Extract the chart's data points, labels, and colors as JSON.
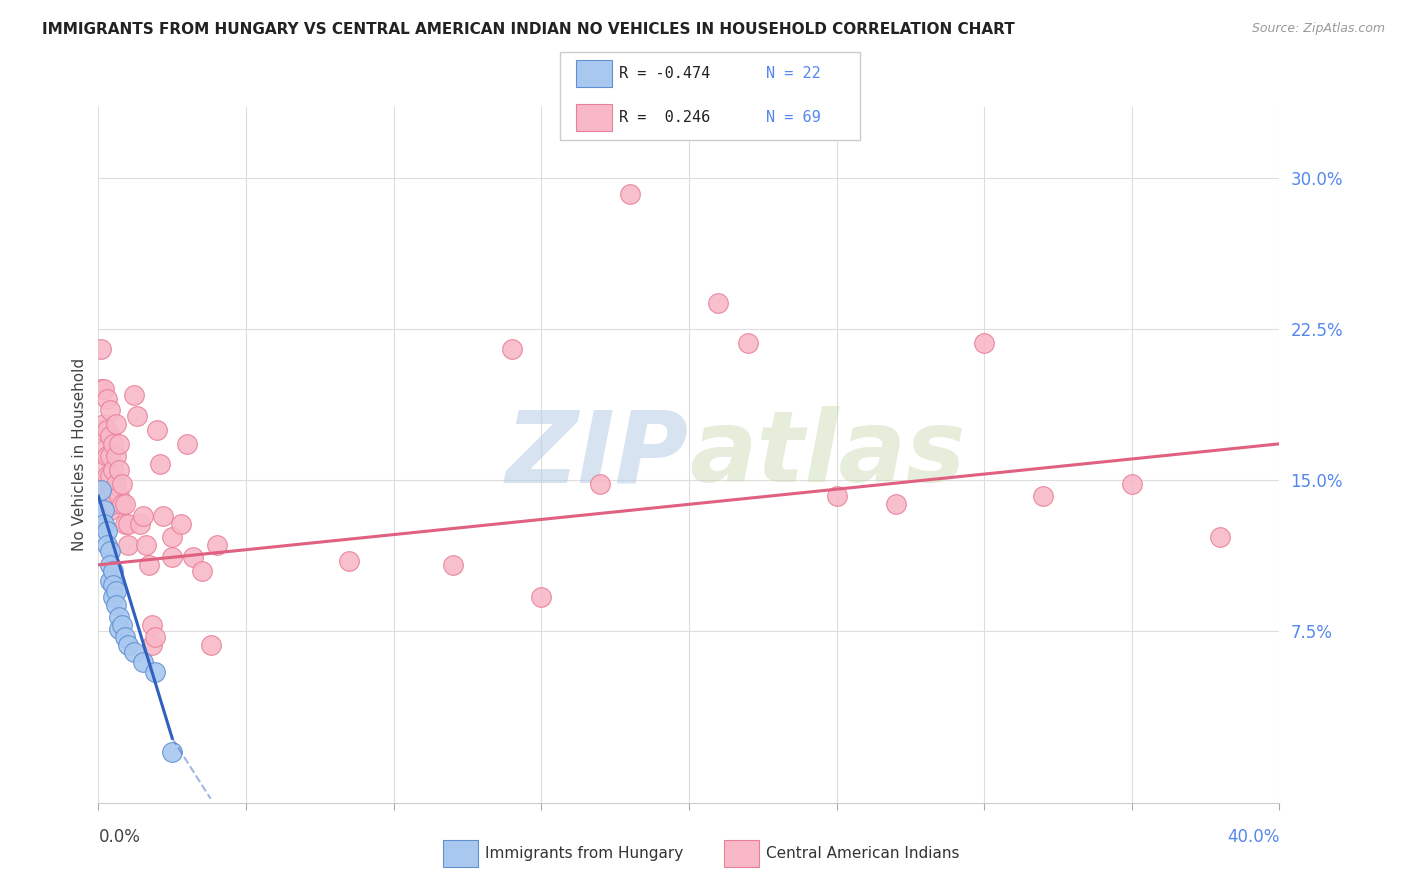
{
  "title": "IMMIGRANTS FROM HUNGARY VS CENTRAL AMERICAN INDIAN NO VEHICLES IN HOUSEHOLD CORRELATION CHART",
  "source": "Source: ZipAtlas.com",
  "ylabel": "No Vehicles in Household",
  "ytick_labels": [
    "7.5%",
    "15.0%",
    "22.5%",
    "30.0%"
  ],
  "ytick_values": [
    0.075,
    0.15,
    0.225,
    0.3
  ],
  "xlim": [
    0.0,
    0.4
  ],
  "ylim": [
    -0.01,
    0.335
  ],
  "legend_blue_r": "R = -0.474",
  "legend_blue_n": "N = 22",
  "legend_pink_r": "R =  0.246",
  "legend_pink_n": "N = 69",
  "blue_label": "Immigrants from Hungary",
  "pink_label": "Central American Indians",
  "watermark_zip": "ZIP",
  "watermark_atlas": "atlas",
  "blue_color": "#a8c8f0",
  "pink_color": "#f8b8c8",
  "blue_edge_color": "#6090d0",
  "pink_edge_color": "#e88098",
  "blue_line_color": "#3060c0",
  "pink_line_color": "#e06080",
  "blue_scatter": [
    [
      0.001,
      0.145
    ],
    [
      0.002,
      0.135
    ],
    [
      0.002,
      0.128
    ],
    [
      0.003,
      0.125
    ],
    [
      0.003,
      0.118
    ],
    [
      0.004,
      0.115
    ],
    [
      0.004,
      0.108
    ],
    [
      0.004,
      0.1
    ],
    [
      0.005,
      0.105
    ],
    [
      0.005,
      0.098
    ],
    [
      0.005,
      0.092
    ],
    [
      0.006,
      0.095
    ],
    [
      0.006,
      0.088
    ],
    [
      0.007,
      0.082
    ],
    [
      0.007,
      0.076
    ],
    [
      0.008,
      0.078
    ],
    [
      0.009,
      0.072
    ],
    [
      0.01,
      0.068
    ],
    [
      0.012,
      0.065
    ],
    [
      0.015,
      0.06
    ],
    [
      0.019,
      0.055
    ],
    [
      0.025,
      0.015
    ]
  ],
  "pink_scatter": [
    [
      0.001,
      0.215
    ],
    [
      0.001,
      0.195
    ],
    [
      0.001,
      0.175
    ],
    [
      0.002,
      0.195
    ],
    [
      0.002,
      0.178
    ],
    [
      0.002,
      0.165
    ],
    [
      0.002,
      0.155
    ],
    [
      0.002,
      0.148
    ],
    [
      0.003,
      0.19
    ],
    [
      0.003,
      0.175
    ],
    [
      0.003,
      0.162
    ],
    [
      0.003,
      0.152
    ],
    [
      0.003,
      0.142
    ],
    [
      0.004,
      0.185
    ],
    [
      0.004,
      0.172
    ],
    [
      0.004,
      0.162
    ],
    [
      0.004,
      0.152
    ],
    [
      0.004,
      0.142
    ],
    [
      0.004,
      0.135
    ],
    [
      0.005,
      0.168
    ],
    [
      0.005,
      0.155
    ],
    [
      0.005,
      0.145
    ],
    [
      0.005,
      0.138
    ],
    [
      0.006,
      0.178
    ],
    [
      0.006,
      0.162
    ],
    [
      0.006,
      0.148
    ],
    [
      0.007,
      0.168
    ],
    [
      0.007,
      0.155
    ],
    [
      0.007,
      0.142
    ],
    [
      0.008,
      0.148
    ],
    [
      0.008,
      0.138
    ],
    [
      0.009,
      0.138
    ],
    [
      0.009,
      0.128
    ],
    [
      0.01,
      0.128
    ],
    [
      0.01,
      0.118
    ],
    [
      0.012,
      0.192
    ],
    [
      0.013,
      0.182
    ],
    [
      0.014,
      0.128
    ],
    [
      0.015,
      0.132
    ],
    [
      0.016,
      0.118
    ],
    [
      0.017,
      0.108
    ],
    [
      0.018,
      0.078
    ],
    [
      0.018,
      0.068
    ],
    [
      0.019,
      0.072
    ],
    [
      0.02,
      0.175
    ],
    [
      0.021,
      0.158
    ],
    [
      0.022,
      0.132
    ],
    [
      0.025,
      0.122
    ],
    [
      0.025,
      0.112
    ],
    [
      0.028,
      0.128
    ],
    [
      0.03,
      0.168
    ],
    [
      0.032,
      0.112
    ],
    [
      0.035,
      0.105
    ],
    [
      0.038,
      0.068
    ],
    [
      0.04,
      0.118
    ],
    [
      0.085,
      0.11
    ],
    [
      0.12,
      0.108
    ],
    [
      0.14,
      0.215
    ],
    [
      0.15,
      0.092
    ],
    [
      0.17,
      0.148
    ],
    [
      0.18,
      0.292
    ],
    [
      0.21,
      0.238
    ],
    [
      0.22,
      0.218
    ],
    [
      0.25,
      0.142
    ],
    [
      0.27,
      0.138
    ],
    [
      0.3,
      0.218
    ],
    [
      0.32,
      0.142
    ],
    [
      0.35,
      0.148
    ],
    [
      0.38,
      0.122
    ]
  ],
  "blue_trendline": [
    [
      0.0,
      0.142
    ],
    [
      0.025,
      0.022
    ]
  ],
  "blue_trendline_ext": [
    [
      0.025,
      0.022
    ],
    [
      0.038,
      -0.008
    ]
  ],
  "pink_trendline": [
    [
      0.0,
      0.108
    ],
    [
      0.4,
      0.168
    ]
  ]
}
